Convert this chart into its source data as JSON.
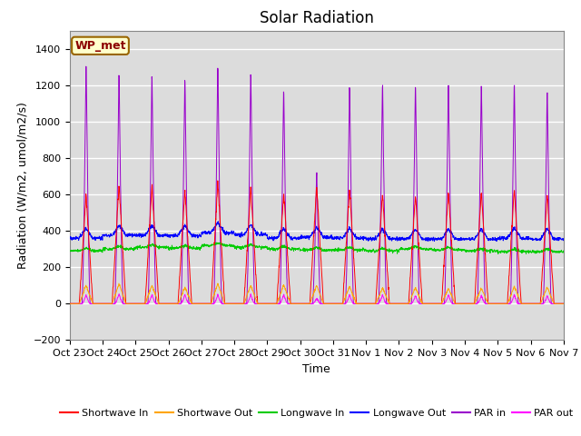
{
  "title": "Solar Radiation",
  "xlabel": "Time",
  "ylabel": "Radiation (W/m2, umol/m2/s)",
  "ylim": [
    -200,
    1500
  ],
  "yticks": [
    -200,
    0,
    200,
    400,
    600,
    800,
    1000,
    1200,
    1400
  ],
  "background_color": "#dcdcdc",
  "grid_color": "white",
  "x_labels": [
    "Oct 23",
    "Oct 24",
    "Oct 25",
    "Oct 26",
    "Oct 27",
    "Oct 28",
    "Oct 29",
    "Oct 30",
    "Oct 31",
    "Nov 1",
    "Nov 2",
    "Nov 3",
    "Nov 4",
    "Nov 5",
    "Nov 6",
    "Nov 7"
  ],
  "num_days": 15,
  "label_box_text": "WP_met",
  "series": {
    "shortwave_in": {
      "color": "#ff0000",
      "label": "Shortwave In"
    },
    "shortwave_out": {
      "color": "#ffa500",
      "label": "Shortwave Out"
    },
    "longwave_in": {
      "color": "#00cc00",
      "label": "Longwave In"
    },
    "longwave_out": {
      "color": "#0000ff",
      "label": "Longwave Out"
    },
    "par_in": {
      "color": "#9900cc",
      "label": "PAR in"
    },
    "par_out": {
      "color": "#ff00ff",
      "label": "PAR out"
    }
  },
  "day_peaks": {
    "shortwave_in": [
      600,
      660,
      650,
      630,
      670,
      645,
      615,
      650,
      640,
      605,
      600,
      625,
      620,
      640,
      605
    ],
    "shortwave_out": [
      100,
      110,
      100,
      90,
      110,
      100,
      105,
      100,
      95,
      85,
      90,
      85,
      85,
      95,
      90
    ],
    "longwave_in_base": [
      290,
      300,
      310,
      305,
      320,
      310,
      300,
      295,
      295,
      290,
      300,
      295,
      290,
      285,
      285
    ],
    "longwave_out_base": [
      360,
      375,
      375,
      375,
      390,
      380,
      360,
      365,
      360,
      355,
      355,
      355,
      355,
      360,
      355
    ],
    "par_in": [
      1360,
      1310,
      1285,
      1270,
      1340,
      1300,
      1215,
      740,
      1240,
      1245,
      1235,
      1255,
      1245,
      1250,
      1205
    ],
    "par_out": [
      50,
      55,
      50,
      50,
      50,
      50,
      50,
      30,
      50,
      50,
      45,
      50,
      45,
      50,
      45
    ]
  },
  "title_fontsize": 12,
  "label_fontsize": 9,
  "tick_fontsize": 8
}
